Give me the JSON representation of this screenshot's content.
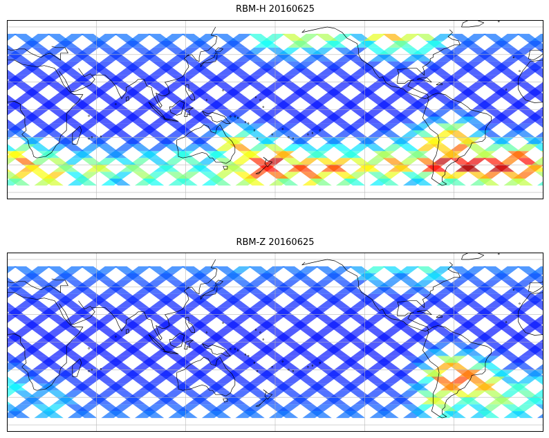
{
  "panels": [
    {
      "title": "RBM-H 20160625",
      "hotspots": [
        {
          "lon": 180,
          "lat": -40,
          "value": 0.95
        },
        {
          "lon": 168,
          "lat": -42,
          "value": 0.9
        },
        {
          "lon": 155,
          "lat": -30,
          "value": 0.75
        },
        {
          "lon": 10,
          "lat": -40,
          "value": 0.8
        },
        {
          "lon": 30,
          "lat": -45,
          "value": 0.7
        },
        {
          "lon": 60,
          "lat": -45,
          "value": 0.6
        },
        {
          "lon": 90,
          "lat": -45,
          "value": 0.55
        },
        {
          "lon": 118,
          "lat": -43,
          "value": 0.55
        },
        {
          "lon": 148,
          "lat": -45,
          "value": 0.6
        },
        {
          "lon": 200,
          "lat": -45,
          "value": 0.85
        },
        {
          "lon": 220,
          "lat": -43,
          "value": 0.8
        },
        {
          "lon": 240,
          "lat": -42,
          "value": 0.65
        },
        {
          "lon": 260,
          "lat": -40,
          "value": 0.75
        },
        {
          "lon": 290,
          "lat": -38,
          "value": 0.95
        },
        {
          "lon": 310,
          "lat": -40,
          "value": 0.98
        },
        {
          "lon": 330,
          "lat": -42,
          "value": 0.95
        },
        {
          "lon": 345,
          "lat": -40,
          "value": 0.95
        },
        {
          "lon": 300,
          "lat": -25,
          "value": 0.85
        },
        {
          "lon": 285,
          "lat": -28,
          "value": 0.7
        },
        {
          "lon": 195,
          "lat": 55,
          "value": 0.6
        },
        {
          "lon": 215,
          "lat": 58,
          "value": 0.6
        },
        {
          "lon": 255,
          "lat": 57,
          "value": 0.8
        },
        {
          "lon": 275,
          "lat": 55,
          "value": 0.65
        },
        {
          "lon": 175,
          "lat": 55,
          "value": 0.45
        }
      ]
    },
    {
      "title": "RBM-Z 20160625",
      "hotspots": [
        {
          "lon": 298,
          "lat": -25,
          "value": 0.9
        },
        {
          "lon": 308,
          "lat": -28,
          "value": 0.85
        },
        {
          "lon": 320,
          "lat": -32,
          "value": 0.7
        },
        {
          "lon": 290,
          "lat": -42,
          "value": 0.6
        },
        {
          "lon": 330,
          "lat": -45,
          "value": 0.55
        },
        {
          "lon": 345,
          "lat": -40,
          "value": 0.5
        },
        {
          "lon": 0,
          "lat": -35,
          "value": 0.4
        },
        {
          "lon": 30,
          "lat": -45,
          "value": 0.35
        },
        {
          "lon": 250,
          "lat": 57,
          "value": 0.45
        },
        {
          "lon": 280,
          "lat": 56,
          "value": 0.45
        },
        {
          "lon": 160,
          "lat": 57,
          "value": 0.3
        }
      ]
    }
  ],
  "map": {
    "lon_range": [
      0,
      360
    ],
    "lat_range": [
      -65,
      65
    ],
    "data_lat_range": [
      -55,
      55
    ],
    "gridline_lons": [
      0,
      60,
      120,
      180,
      240,
      300,
      360
    ],
    "gridline_lats": [
      -60,
      -40,
      -20,
      0,
      20,
      40,
      60
    ],
    "grid": true,
    "coastlines": true,
    "colormap": "jet"
  }
}
